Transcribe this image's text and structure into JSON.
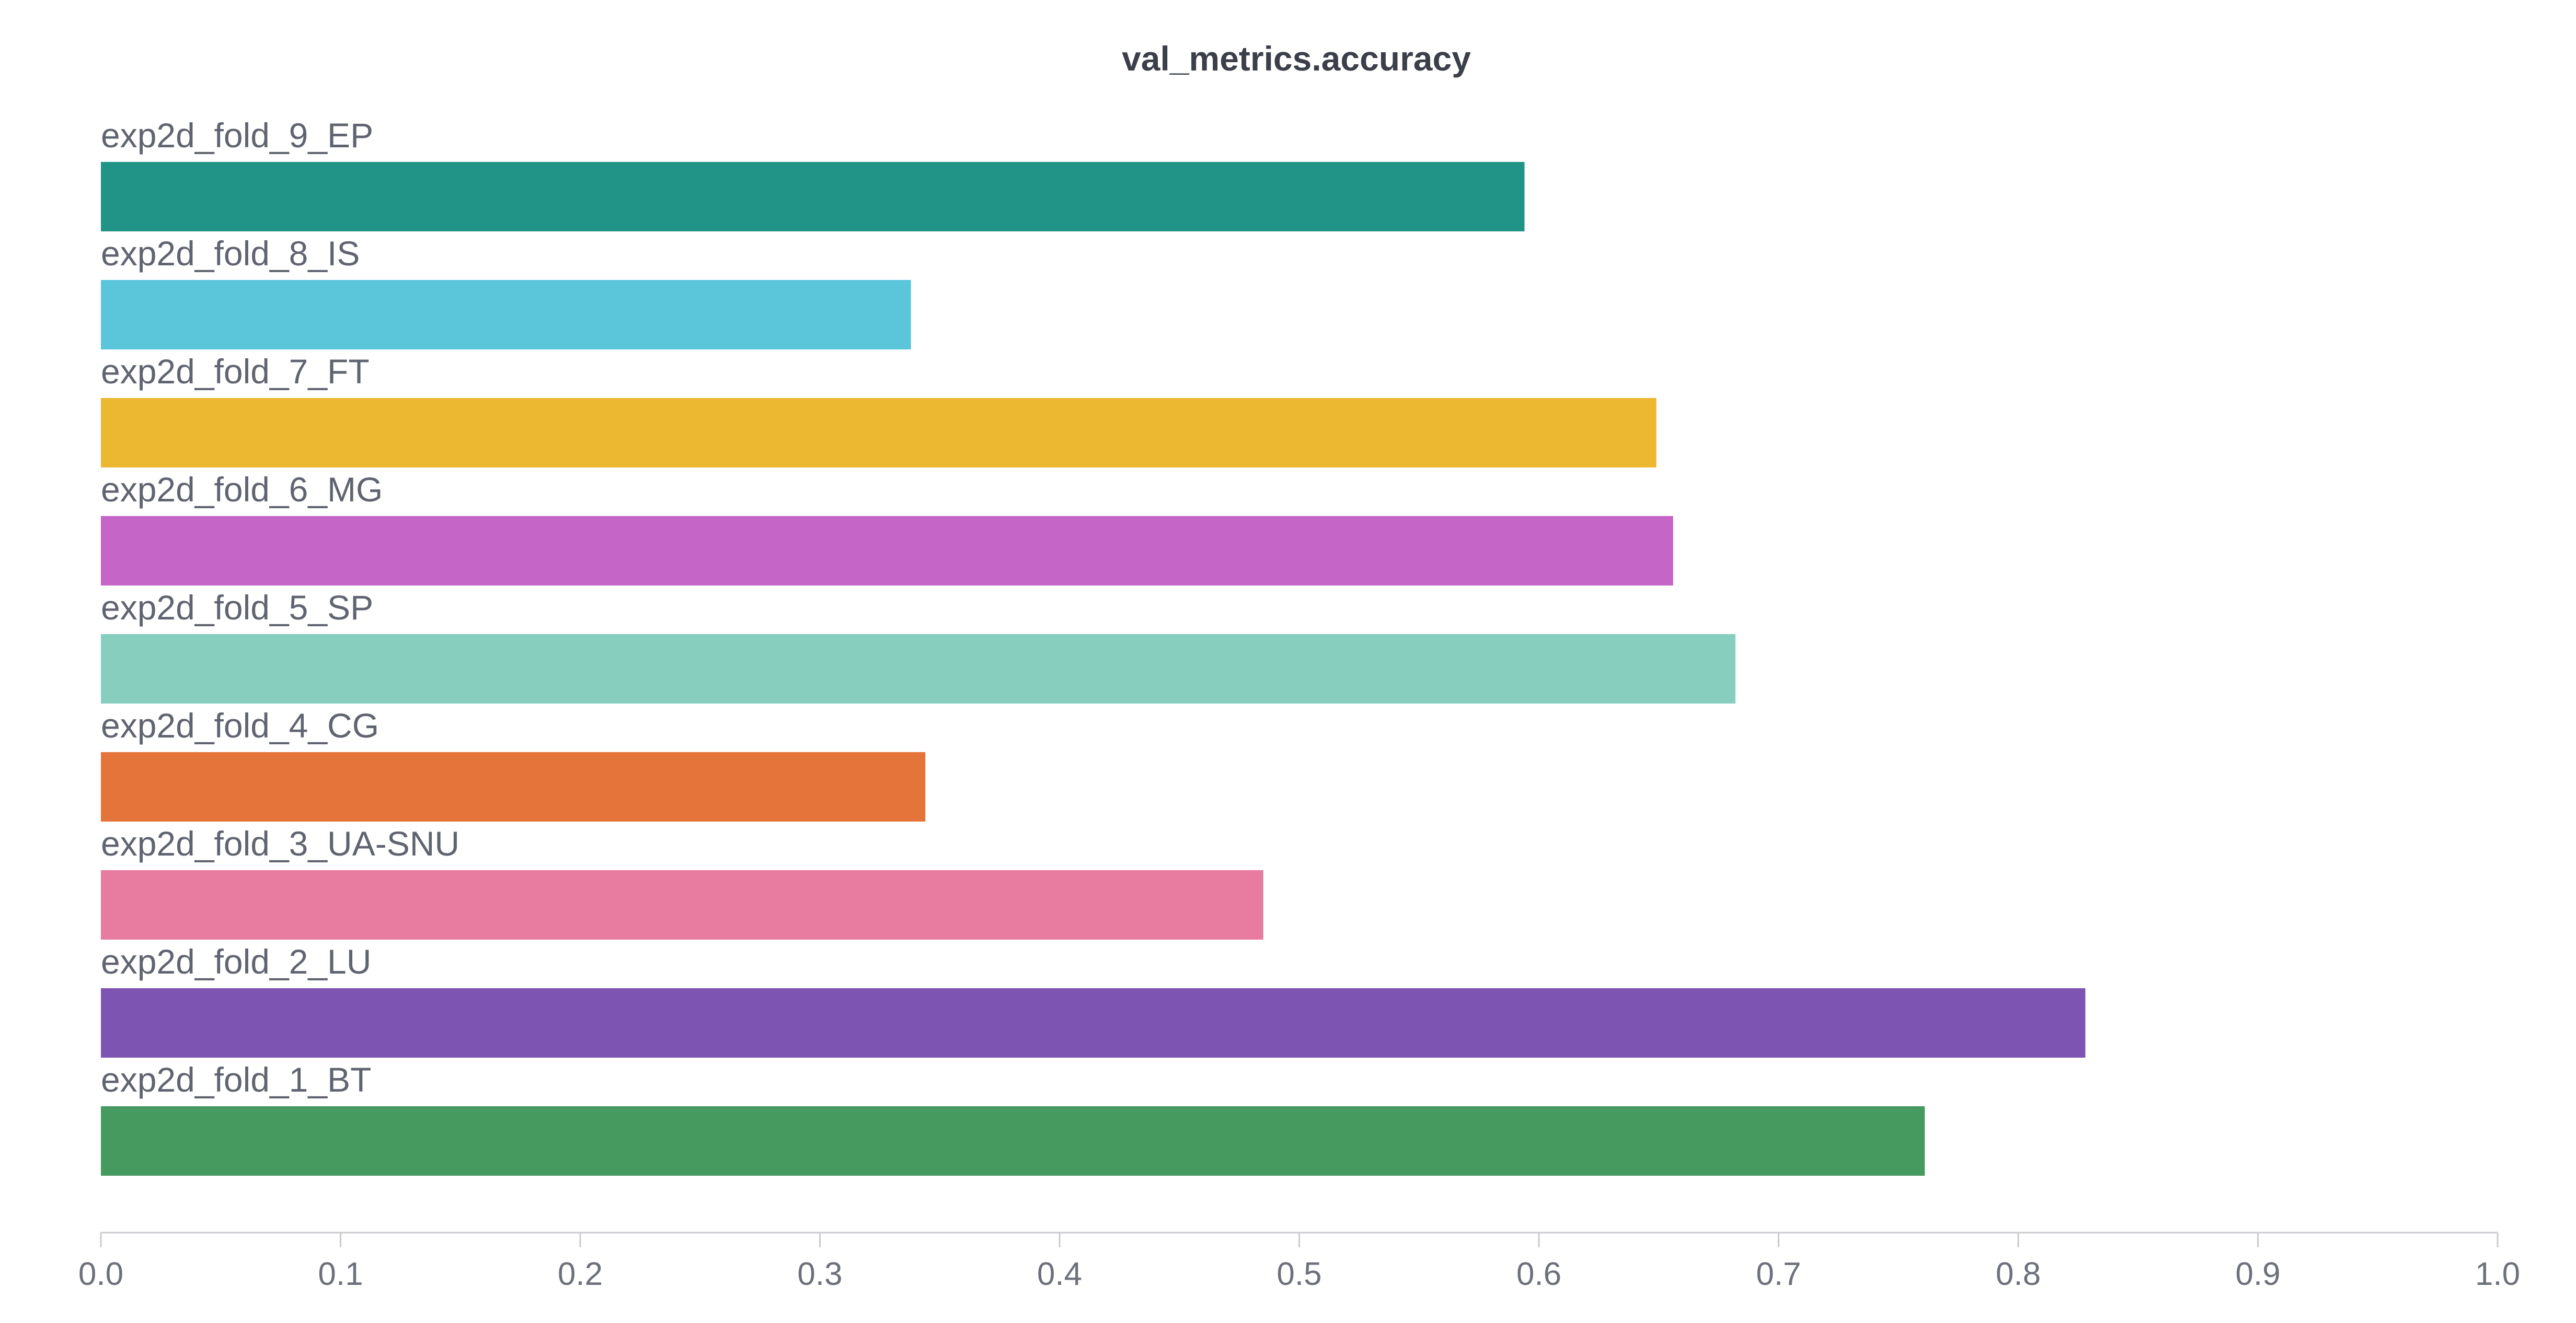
{
  "chart_data": {
    "type": "bar",
    "orientation": "horizontal",
    "title": "val_metrics.accuracy",
    "xlabel": "",
    "ylabel": "",
    "xlim": [
      0,
      1
    ],
    "grid": false,
    "x_ticks": [
      "0.0",
      "0.1",
      "0.2",
      "0.3",
      "0.4",
      "0.5",
      "0.6",
      "0.7",
      "0.8",
      "0.9",
      "1.0"
    ],
    "categories": [
      "exp2d_fold_9_EP",
      "exp2d_fold_8_IS",
      "exp2d_fold_7_FT",
      "exp2d_fold_6_MG",
      "exp2d_fold_5_SP",
      "exp2d_fold_4_CG",
      "exp2d_fold_3_UA-SNU",
      "exp2d_fold_2_LU",
      "exp2d_fold_1_BT"
    ],
    "values": [
      0.594,
      0.338,
      0.649,
      0.656,
      0.682,
      0.344,
      0.485,
      0.828,
      0.761
    ],
    "colors": [
      "#229487",
      "#5bc5da",
      "#ecb731",
      "#c565c7",
      "#87cebf",
      "#e47439",
      "#e87ba0",
      "#7d54b2",
      "#479a5f"
    ]
  }
}
